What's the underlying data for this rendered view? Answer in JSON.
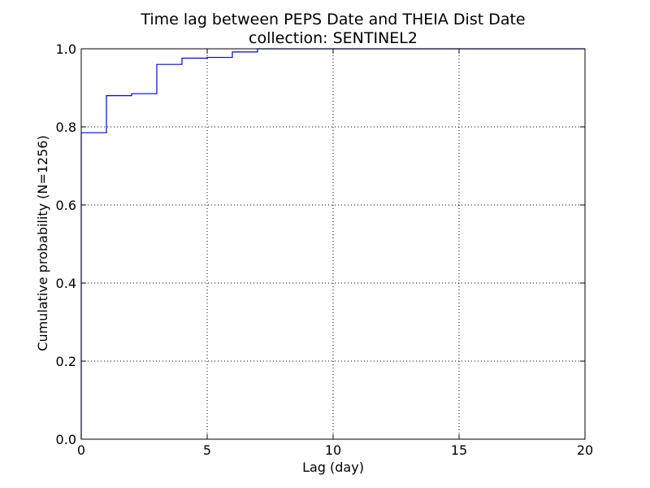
{
  "chart_data": {
    "type": "line",
    "title": "Time lag between PEPS Date and THEIA Dist Date",
    "subtitle": "collection: SENTINEL2",
    "xlabel": "Lag (day)",
    "ylabel": "Cumulative probability (N=1256)",
    "xlim": [
      0,
      20
    ],
    "ylim": [
      0,
      1.0
    ],
    "xticks": [
      0,
      5,
      10,
      15,
      20
    ],
    "xtick_labels": [
      "0",
      "5",
      "10",
      "15",
      "20"
    ],
    "yticks": [
      0.0,
      0.2,
      0.4,
      0.6,
      0.8,
      1.0
    ],
    "ytick_labels": [
      "0.0",
      "0.2",
      "0.4",
      "0.6",
      "0.8",
      "1.0"
    ],
    "grid": true,
    "line_style": "step",
    "series": [
      {
        "color": "#0000ff",
        "x": [
          0,
          0,
          1,
          1,
          2,
          2,
          3,
          3,
          4,
          4,
          5,
          5,
          6,
          6,
          7,
          7,
          20
        ],
        "y": [
          0.0,
          0.785,
          0.785,
          0.88,
          0.88,
          0.885,
          0.885,
          0.96,
          0.96,
          0.976,
          0.976,
          0.978,
          0.978,
          0.992,
          0.992,
          1.0,
          1.0
        ]
      }
    ]
  }
}
